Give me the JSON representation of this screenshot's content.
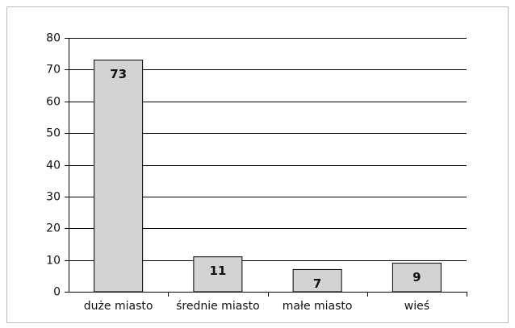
{
  "chart_data": {
    "type": "bar",
    "categories": [
      "duże miasto",
      "średnie miasto",
      "małe miasto",
      "wieś"
    ],
    "values": [
      73,
      11,
      7,
      9
    ],
    "color": "#d3d3d3",
    "ylim": [
      0,
      80
    ],
    "yticks": [
      0,
      10,
      20,
      30,
      40,
      50,
      60,
      70,
      80
    ],
    "grid": true
  }
}
